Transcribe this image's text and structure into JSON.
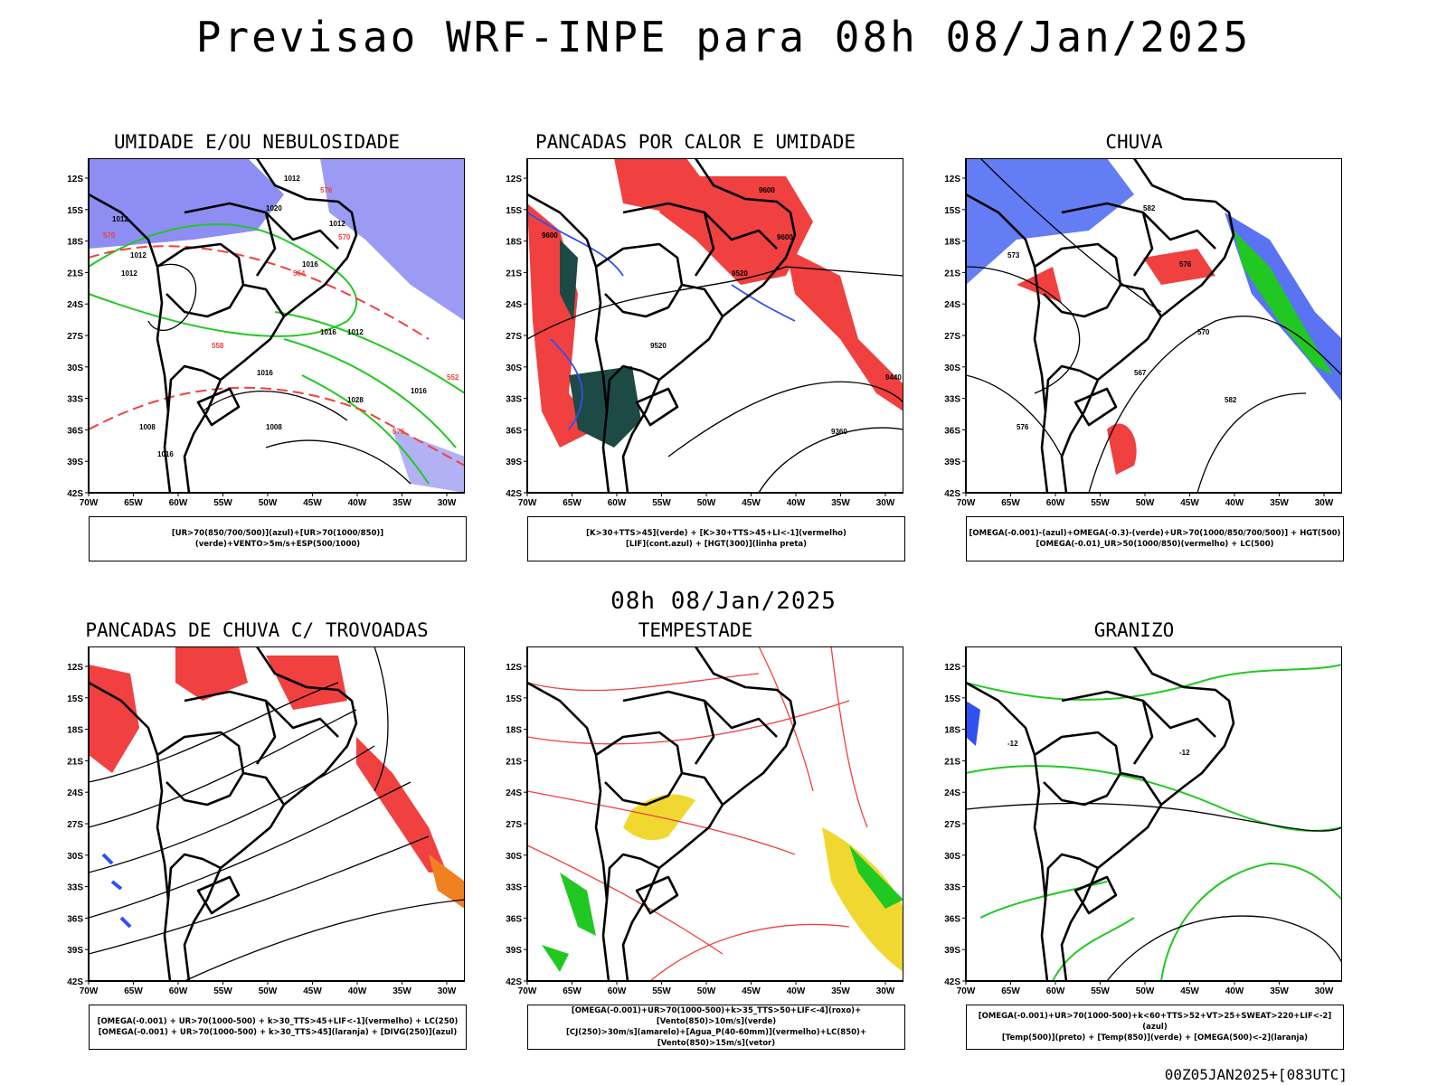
{
  "title": "Previsao WRF-INPE  para 08h 08/Jan/2025",
  "subtitle": "08h 08/Jan/2025",
  "footer": "00Z05JAN2025+[083UTC]",
  "axes": {
    "lat_ticks": [
      "12S",
      "15S",
      "18S",
      "21S",
      "24S",
      "27S",
      "30S",
      "33S",
      "36S",
      "39S",
      "42S"
    ],
    "lon_ticks": [
      "70W",
      "65W",
      "60W",
      "55W",
      "50W",
      "45W",
      "40W",
      "35W",
      "30W"
    ]
  },
  "colors": {
    "blue": "#7070f0",
    "green": "#22c822",
    "red": "#f04040",
    "orange": "#f08020",
    "darkgreen": "#1e4a46",
    "yellow": "#f0d830",
    "black": "#000000"
  },
  "panels": [
    {
      "id": "umidade",
      "title": "UMIDADE E/OU NEBULOSIDADE",
      "legend": [
        "[UR>70(850/700/500)](azul)+[UR>70(1000/850)](verde)+VENTO>5m/s+ESP(500/1000)"
      ],
      "labels": [
        "1012",
        "1012",
        "1012",
        "1012",
        "1012",
        "1016",
        "1016",
        "1008",
        "1020",
        "1016",
        "1012",
        "1016",
        "1016",
        "1008",
        "1028",
        "576",
        "570",
        "570",
        "564",
        "558",
        "552",
        "576"
      ]
    },
    {
      "id": "pancadas-calor",
      "title": "PANCADAS POR CALOR E UMIDADE",
      "legend": [
        "[K>30+TTS>45](verde) + [K>30+TTS>45+LI<-1](vermelho)",
        "[LIF](cont.azul) + [HGT(300)](linha preta)"
      ],
      "labels": [
        "9600",
        "9600",
        "9600",
        "9520",
        "9520",
        "9440",
        "9360"
      ]
    },
    {
      "id": "chuva",
      "title": "CHUVA",
      "legend": [
        "[OMEGA(-0.001)-(azul)+OMEGA(-0.3)-(verde)+UR>70(1000/850/700/500)] + HGT(500)",
        "[OMEGA(-0.01)_UR>50(1000/850)(vermelho) + LC(500)"
      ],
      "labels": [
        "582",
        "576",
        "573",
        "570",
        "567",
        "576",
        "582"
      ]
    },
    {
      "id": "trovoadas",
      "title": "PANCADAS DE CHUVA C/ TROVOADAS",
      "legend": [
        "[OMEGA(-0.001) + UR>70(1000-500) + k>30_TTS>45+LIF<-1](vermelho) + LC(250)",
        "[OMEGA(-0.001) + UR>70(1000-500) + k>30_TTS>45](laranja) + [DIVG(250)](azul)"
      ],
      "labels": []
    },
    {
      "id": "tempestade",
      "title": "TEMPESTADE",
      "legend": [
        "[OMEGA(-0.001)+UR>70(1000-500)+k>35_TTS>50+LIF<-4](roxo)+[Vento(850)>10m/s](verde)",
        "[CJ(250)>30m/s](amarelo)+[Agua_P(40-60mm)](vermelho)+LC(850)+[Vento(850)>15m/s](vetor)"
      ],
      "labels": []
    },
    {
      "id": "granizo",
      "title": "GRANIZO",
      "legend": [
        "[OMEGA(-0.001)+UR>70(1000-500)+k<60+TTS>52+VT>25+SWEAT>220+LIF<-2](azul)",
        "[Temp(500)](preto) + [Temp(850)](verde) + [OMEGA(500)<-2](laranja)"
      ],
      "labels": [
        "-12",
        "-12"
      ]
    }
  ]
}
